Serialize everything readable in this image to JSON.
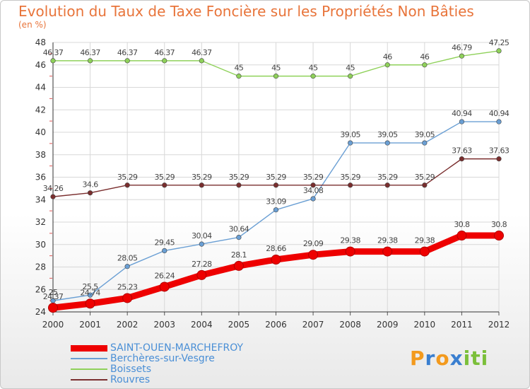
{
  "title": "Evolution du Taux de Taxe Foncière sur les Propriétés Non Bâties",
  "subtitle": "(en %)",
  "logo": {
    "text": "Proxiti",
    "letters": [
      "P",
      "r",
      "o",
      "x",
      "i",
      "t",
      "i"
    ],
    "colors": [
      "#f39a1e",
      "#3a7fd0",
      "#f39a1e",
      "#3a7fd0",
      "#7bbf3a",
      "#7bbf3a",
      "#7bbf3a"
    ]
  },
  "chart_data": {
    "type": "line",
    "x": [
      "2000",
      "2001",
      "2002",
      "2003",
      "2004",
      "2005",
      "2006",
      "2007",
      "2008",
      "2009",
      "2010",
      "2011",
      "2012"
    ],
    "ylim": [
      24,
      48
    ],
    "yticks": [
      "24",
      "26",
      "28",
      "30",
      "32",
      "34",
      "36",
      "38",
      "40",
      "42",
      "44",
      "46",
      "48"
    ],
    "grid": true,
    "legend_position": "bottom-left",
    "series": [
      {
        "name": "SAINT-OUEN-MARCHEFROY",
        "color": "#ee0000",
        "emphasis": true,
        "values": [
          24.37,
          24.74,
          25.23,
          26.24,
          27.28,
          28.1,
          28.66,
          29.09,
          29.38,
          29.38,
          29.38,
          30.8,
          30.8
        ],
        "labels": [
          "24.37",
          "24.74",
          "25.23",
          "26.24",
          "27.28",
          "28.1",
          "28.66",
          "29.09",
          "29.38",
          "29.38",
          "29.38",
          "30.8",
          "30.8"
        ]
      },
      {
        "name": "Berchères-sur-Vesgre",
        "color": "#6a9fd4",
        "values": [
          25,
          25.5,
          28.05,
          29.45,
          30.04,
          30.64,
          33.09,
          34.08,
          39.05,
          39.05,
          39.05,
          40.94,
          40.94
        ],
        "labels": [
          "25",
          "25.5",
          "28.05",
          "29.45",
          "30.04",
          "30.64",
          "33.09",
          "34.08",
          "39.05",
          "39.05",
          "39.05",
          "40.94",
          "40.94"
        ]
      },
      {
        "name": "Boissets",
        "color": "#8fd15a",
        "values": [
          46.37,
          46.37,
          46.37,
          46.37,
          46.37,
          45,
          45,
          45,
          45,
          46,
          46,
          46.79,
          47.25
        ],
        "labels": [
          "46.37",
          "46.37",
          "46.37",
          "46.37",
          "46.37",
          "45",
          "45",
          "45",
          "45",
          "46",
          "46",
          "46.79",
          "47.25"
        ]
      },
      {
        "name": "Rouvres",
        "color": "#7a2e2e",
        "values": [
          34.26,
          34.6,
          35.29,
          35.29,
          35.29,
          35.29,
          35.29,
          35.29,
          35.29,
          35.29,
          35.29,
          37.63,
          37.63
        ],
        "labels": [
          "34.26",
          "34.6",
          "35.29",
          "35.29",
          "35.29",
          "35.29",
          "35.29",
          "35.29",
          "35.29",
          "35.29",
          "35.29",
          "37.63",
          "37.63"
        ]
      }
    ]
  }
}
